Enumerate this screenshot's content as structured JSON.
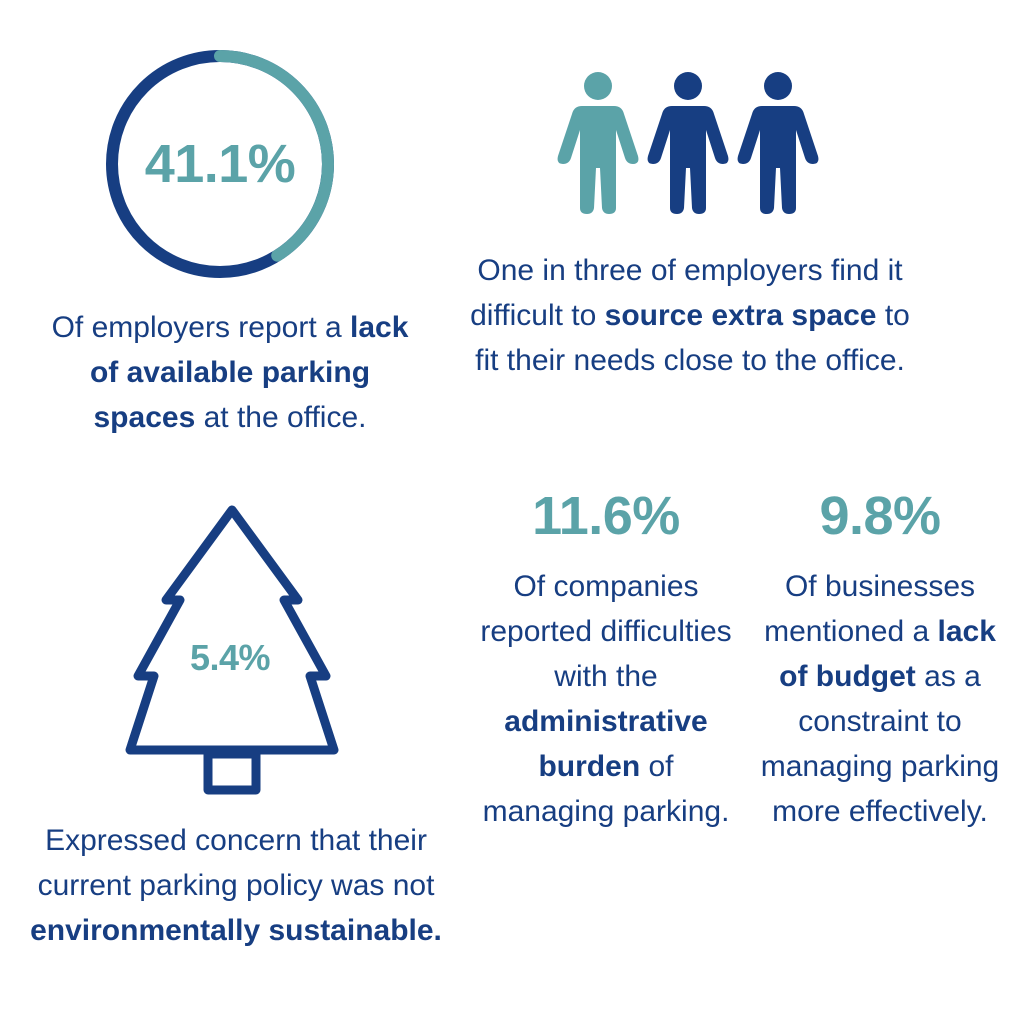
{
  "colors": {
    "navy": "#173e82",
    "teal": "#5ba3a8",
    "background": "#ffffff"
  },
  "ring_stat": {
    "value": "41.1%",
    "fraction": 0.411,
    "caption": {
      "t1": "Of employers report a ",
      "b1": "lack of available parking spaces",
      "t2": " at the office."
    }
  },
  "people_stat": {
    "people_total": 3,
    "people_highlighted": 1,
    "caption": {
      "t1": "One in three of employers find it difficult to ",
      "b1": "source extra space",
      "t2": " to fit their needs close to the office."
    }
  },
  "admin_stat": {
    "value": "11.6%",
    "caption": {
      "t1": "Of companies reported difficulties with the ",
      "b1": "administrative burden",
      "t2": " of managing parking."
    }
  },
  "budget_stat": {
    "value": "9.8%",
    "caption": {
      "t1": "Of businesses mentioned a ",
      "b1": "lack of budget",
      "t2": " as a constraint to managing parking more effectively."
    }
  },
  "tree_stat": {
    "value": "5.4%",
    "caption": {
      "t1": "Expressed concern that their current parking policy was not ",
      "b1": "environmentally sustainable."
    }
  }
}
